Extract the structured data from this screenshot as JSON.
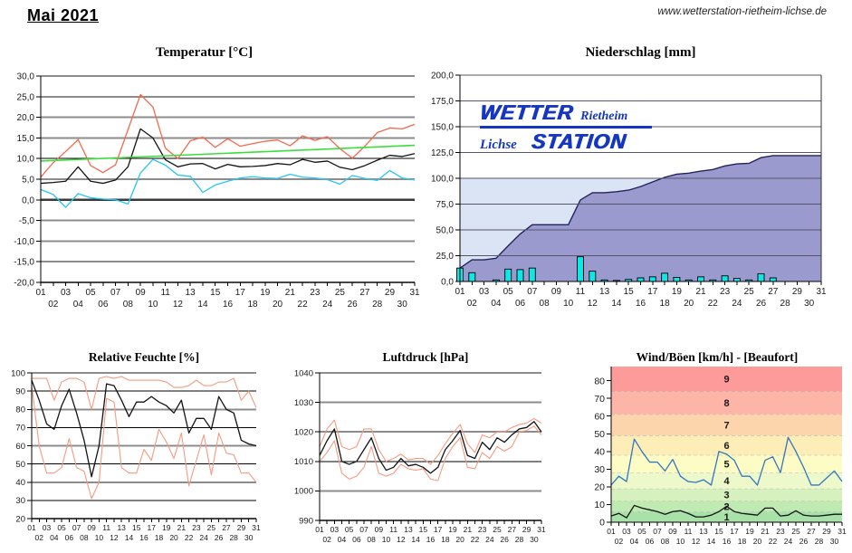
{
  "header": {
    "title": "Mai 2021",
    "website": "www.wetterstation-rietheim-lichse.de"
  },
  "logo": {
    "top_main": "WETTER",
    "top_right": "Rietheim",
    "bottom_left": "Lichse",
    "bottom_main": "STATION",
    "color": "#1536c0"
  },
  "days": [
    "01",
    "02",
    "03",
    "04",
    "05",
    "06",
    "07",
    "08",
    "09",
    "10",
    "11",
    "12",
    "13",
    "14",
    "15",
    "16",
    "17",
    "18",
    "19",
    "20",
    "21",
    "22",
    "23",
    "24",
    "25",
    "26",
    "27",
    "28",
    "29",
    "30",
    "31"
  ],
  "chart_data": [
    {
      "id": "temperature",
      "type": "line",
      "title": "Temperatur [°C]",
      "ylim": [
        -20,
        30
      ],
      "grid": true,
      "yticks": [
        {
          "label": "30,0",
          "v": 30
        },
        {
          "label": "25,0",
          "v": 25
        },
        {
          "label": "20,0",
          "v": 20
        },
        {
          "label": "15,0",
          "v": 15
        },
        {
          "label": "10,0",
          "v": 10,
          "dark": true
        },
        {
          "label": "5,0",
          "v": 5
        },
        {
          "label": "0,0",
          "v": 0,
          "zero": true
        },
        {
          "label": "-5,0",
          "v": -5
        },
        {
          "label": "-10,0",
          "v": -10
        },
        {
          "label": "-15,0",
          "v": -15
        },
        {
          "label": "-20,0",
          "v": -20
        }
      ],
      "series": [
        {
          "name": "max",
          "color": "#f4694b",
          "width": 1.3,
          "values": [
            5.5,
            9.0,
            11.7,
            14.6,
            8.3,
            6.6,
            8.5,
            17.0,
            25.5,
            22.5,
            12.5,
            10.0,
            14.3,
            15.2,
            12.7,
            14.8,
            13.0,
            13.6,
            14.2,
            14.5,
            13.1,
            15.5,
            14.4,
            15.3,
            12.4,
            10.1,
            13.0,
            16.3,
            17.4,
            17.2,
            18.3
          ]
        },
        {
          "name": "mean",
          "color": "#141414",
          "width": 1.3,
          "values": [
            4.0,
            4.2,
            4.5,
            8.0,
            4.5,
            4.0,
            4.8,
            8.0,
            17.2,
            15.0,
            9.7,
            8.0,
            8.7,
            8.8,
            7.5,
            8.6,
            8.0,
            8.1,
            8.3,
            8.8,
            8.5,
            9.8,
            9.1,
            9.4,
            7.9,
            7.3,
            8.3,
            9.6,
            10.8,
            10.5,
            11.2
          ]
        },
        {
          "name": "min",
          "color": "#29c5f2",
          "width": 1.3,
          "values": [
            2.5,
            1.3,
            -1.8,
            1.5,
            0.5,
            0.2,
            0.0,
            -1.0,
            6.5,
            9.8,
            8.4,
            6.0,
            5.7,
            1.8,
            3.6,
            4.5,
            5.3,
            5.6,
            5.3,
            5.2,
            6.2,
            5.5,
            5.3,
            4.9,
            3.8,
            5.9,
            5.2,
            4.7,
            7.1,
            5.3,
            4.8
          ]
        },
        {
          "name": "trend",
          "color": "#3edd3e",
          "width": 1.6,
          "values": [
            9.4,
            13.2
          ]
        }
      ]
    },
    {
      "id": "precipitation",
      "type": "bar+area",
      "title": "Niederschlag [mm]",
      "ylim": [
        0,
        200
      ],
      "right_border": true,
      "yticks": [
        {
          "label": "200,0",
          "v": 200
        },
        {
          "label": "175,0",
          "v": 175
        },
        {
          "label": "150,0",
          "v": 150
        },
        {
          "label": "125,0",
          "v": 125
        },
        {
          "label": "100,0",
          "v": 100
        },
        {
          "label": "75,0",
          "v": 75
        },
        {
          "label": "50,0",
          "v": 50
        },
        {
          "label": "25,0",
          "v": 25
        },
        {
          "label": "0,0",
          "v": 0
        }
      ],
      "bg_below_100": "#dbe4f4",
      "cumulative_color": "#9a9ace",
      "cumulative_stroke": "#23235c",
      "bar_color": "#0fe6e6",
      "cumulative": [
        13,
        21,
        21,
        22.5,
        34.5,
        46,
        55,
        55,
        55,
        55,
        79,
        86,
        86,
        87,
        88.5,
        92,
        96.5,
        101,
        104,
        105,
        107,
        108.5,
        112,
        114,
        114.5,
        120,
        122,
        122,
        122,
        122,
        122
      ],
      "daily": [
        13,
        8.5,
        0,
        1.5,
        12,
        11.5,
        13,
        0,
        0,
        0,
        24,
        10,
        1.5,
        1,
        2,
        3.5,
        4.5,
        8,
        4,
        1.5,
        4.5,
        1.5,
        5.5,
        3,
        1.5,
        7.5,
        3.5,
        0,
        0,
        0,
        0
      ]
    },
    {
      "id": "humidity",
      "type": "line",
      "title": "Relative Feuchte [%]",
      "ylim": [
        20,
        100
      ],
      "grid": true,
      "yticks": [
        {
          "label": "100",
          "v": 100
        },
        {
          "label": "90",
          "v": 90,
          "dark": true
        },
        {
          "label": "80",
          "v": 80
        },
        {
          "label": "70",
          "v": 70,
          "dark": true
        },
        {
          "label": "60",
          "v": 60
        },
        {
          "label": "50",
          "v": 50,
          "dark": true
        },
        {
          "label": "40",
          "v": 40
        },
        {
          "label": "30",
          "v": 30,
          "dark": true
        },
        {
          "label": "20",
          "v": 20
        }
      ],
      "series": [
        {
          "name": "max",
          "color": "#f59b80",
          "width": 1.1,
          "values": [
            97,
            97,
            97,
            85,
            95,
            97,
            97,
            95,
            80,
            97,
            98,
            97,
            98,
            96,
            96,
            96,
            96,
            96,
            95,
            92,
            92,
            93,
            96,
            93,
            93,
            95,
            95,
            97,
            85,
            90,
            81
          ]
        },
        {
          "name": "min",
          "color": "#f59b80",
          "width": 1.1,
          "values": [
            93,
            60,
            45,
            45,
            48,
            64,
            48,
            46,
            31,
            40,
            86,
            84,
            48,
            45,
            45,
            58,
            52,
            69,
            62,
            53,
            67,
            38,
            52,
            66,
            44,
            67,
            56,
            55,
            45,
            45,
            40
          ]
        },
        {
          "name": "mean",
          "color": "#141414",
          "width": 1.3,
          "values": [
            96,
            85,
            72,
            69,
            82,
            91,
            78,
            63,
            43,
            60,
            94,
            93,
            85,
            76,
            84,
            84,
            87,
            84,
            82,
            78,
            85,
            67,
            75,
            75,
            69,
            87,
            80,
            78,
            63,
            61,
            60
          ]
        }
      ]
    },
    {
      "id": "pressure",
      "type": "line",
      "title": "Luftdruck [hPa]",
      "ylim": [
        990,
        1040
      ],
      "grid": true,
      "yticks": [
        {
          "label": "1040",
          "v": 1040
        },
        {
          "label": "1030",
          "v": 1030
        },
        {
          "label": "1020",
          "v": 1020
        },
        {
          "label": "1010",
          "v": 1010,
          "dark": true
        },
        {
          "label": "1000",
          "v": 1000
        },
        {
          "label": "990",
          "v": 990
        }
      ],
      "series": [
        {
          "name": "max",
          "color": "#f59b80",
          "width": 1.1,
          "values": [
            1015,
            1021,
            1024,
            1015,
            1014,
            1015,
            1021,
            1021,
            1014,
            1010,
            1011,
            1012.5,
            1010.5,
            1011,
            1011,
            1009,
            1012,
            1016,
            1019.5,
            1022.5,
            1016,
            1013,
            1019,
            1018,
            1020,
            1020,
            1021.5,
            1022.5,
            1023,
            1024.5,
            1023
          ]
        },
        {
          "name": "min",
          "color": "#f59b80",
          "width": 1.1,
          "values": [
            1010,
            1013,
            1017,
            1006,
            1004,
            1005,
            1008,
            1015,
            1006,
            1005,
            1006,
            1009,
            1007.5,
            1007,
            1007.5,
            1004,
            1003.5,
            1011,
            1015,
            1018,
            1008,
            1007.5,
            1013,
            1011,
            1015,
            1013.5,
            1015,
            1020,
            1020.5,
            1022,
            1019
          ]
        },
        {
          "name": "mean",
          "color": "#141414",
          "width": 1.3,
          "values": [
            1012,
            1017,
            1021,
            1010,
            1009,
            1010,
            1014,
            1018,
            1011,
            1007,
            1008,
            1011,
            1008.5,
            1009,
            1008,
            1006,
            1008,
            1014,
            1017,
            1020.5,
            1012,
            1011,
            1016.5,
            1014,
            1018,
            1016.5,
            1019,
            1021,
            1021.5,
            1023.5,
            1020
          ]
        }
      ]
    },
    {
      "id": "wind",
      "type": "banded-line",
      "title": "Wind/Böen [km/h] - [Beaufort]",
      "ylim": [
        0,
        88
      ],
      "no_grid": true,
      "yticks": [
        {
          "label": "80",
          "v": 80
        },
        {
          "label": "70",
          "v": 70
        },
        {
          "label": "60",
          "v": 60
        },
        {
          "label": "50",
          "v": 50
        },
        {
          "label": "40",
          "v": 40
        },
        {
          "label": "30",
          "v": 30
        },
        {
          "label": "20",
          "v": 20
        },
        {
          "label": "10",
          "v": 10
        },
        {
          "label": "0",
          "v": 0
        }
      ],
      "bands": [
        {
          "label": "1",
          "from": 0,
          "to": 6,
          "color": "#a9e2a9"
        },
        {
          "label": "2",
          "from": 6,
          "to": 12,
          "color": "#bfeab2"
        },
        {
          "label": "3",
          "from": 12,
          "to": 19,
          "color": "#d6f1bd"
        },
        {
          "label": "4",
          "from": 19,
          "to": 28,
          "color": "#edf8cb"
        },
        {
          "label": "5",
          "from": 28,
          "to": 38,
          "color": "#fdfcc4"
        },
        {
          "label": "6",
          "from": 38,
          "to": 49,
          "color": "#fdedb6"
        },
        {
          "label": "7",
          "from": 49,
          "to": 61,
          "color": "#fdd5ad"
        },
        {
          "label": "8",
          "from": 61,
          "to": 74,
          "color": "#fdb5a8"
        },
        {
          "label": "9",
          "from": 74,
          "to": 88,
          "color": "#fd9a9a"
        }
      ],
      "series": [
        {
          "name": "gusts",
          "color": "#3377c2",
          "width": 1.3,
          "values": [
            21,
            26,
            23,
            47,
            40,
            34,
            34,
            29,
            35.5,
            26,
            23,
            22.5,
            24,
            21,
            40,
            38.5,
            35,
            26,
            26,
            21,
            35,
            37,
            28,
            48,
            40,
            31,
            21,
            21,
            25,
            29,
            23
          ]
        },
        {
          "name": "avg",
          "color": "#141414",
          "width": 1.3,
          "values": [
            3.5,
            5,
            2.5,
            9.5,
            8,
            7,
            6,
            4.5,
            6,
            6.5,
            5,
            3,
            3,
            4,
            6,
            9,
            6,
            5,
            4.5,
            4,
            8,
            8,
            3.5,
            4,
            6.5,
            4,
            3.5,
            3.5,
            4,
            4.5,
            4.5
          ]
        }
      ]
    }
  ]
}
